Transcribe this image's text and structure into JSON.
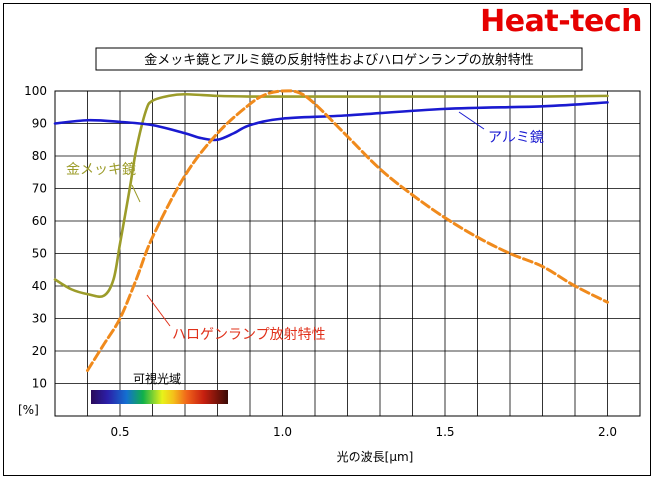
{
  "brand": "Heat-tech",
  "chart_data": {
    "type": "line",
    "title": "金メッキ鏡とアルミ鏡の反射特性およびハロゲンランプの放射特性",
    "xlabel": "光の波長[μm]",
    "ylabel": "[%]",
    "xlim": [
      0.3,
      2.1
    ],
    "ylim": [
      0,
      100
    ],
    "xticks": [
      "0.5",
      "1.0",
      "1.5",
      "2.0"
    ],
    "yticks": [
      "10",
      "20",
      "30",
      "40",
      "50",
      "60",
      "70",
      "80",
      "90",
      "100"
    ],
    "grid": true,
    "visible_band_label": "可視光域",
    "series": [
      {
        "name": "金メッキ鏡",
        "color": "#9c9c2a",
        "style": "solid",
        "x": [
          0.3,
          0.35,
          0.4,
          0.45,
          0.48,
          0.5,
          0.53,
          0.55,
          0.58,
          0.6,
          0.65,
          0.7,
          0.8,
          0.9,
          1.0,
          1.2,
          1.5,
          1.8,
          2.0
        ],
        "y": [
          42,
          39,
          37.5,
          37,
          42,
          53,
          70,
          82,
          94,
          97,
          98.5,
          99,
          98.5,
          98.3,
          98.3,
          98.3,
          98.3,
          98.3,
          98.5
        ]
      },
      {
        "name": "アルミ鏡",
        "color": "#1a1ad0",
        "style": "solid",
        "x": [
          0.3,
          0.4,
          0.5,
          0.6,
          0.7,
          0.75,
          0.8,
          0.85,
          0.9,
          1.0,
          1.2,
          1.5,
          1.8,
          2.0
        ],
        "y": [
          90,
          91,
          90.5,
          89.5,
          87,
          85.5,
          85,
          87,
          89.5,
          91.5,
          92.5,
          94.5,
          95.3,
          96.5
        ]
      },
      {
        "name": "ハロゲンランプ放射特性",
        "color": "#f08a1c",
        "style": "dashed",
        "x": [
          0.4,
          0.45,
          0.5,
          0.55,
          0.6,
          0.7,
          0.8,
          0.9,
          0.95,
          1.0,
          1.05,
          1.1,
          1.2,
          1.3,
          1.4,
          1.5,
          1.6,
          1.7,
          1.8,
          1.9,
          2.0
        ],
        "y": [
          14,
          22,
          30,
          42,
          55,
          74,
          87,
          96,
          99,
          100,
          99.5,
          96,
          86,
          76,
          68,
          61,
          55,
          50,
          46,
          40,
          35
        ]
      }
    ]
  }
}
